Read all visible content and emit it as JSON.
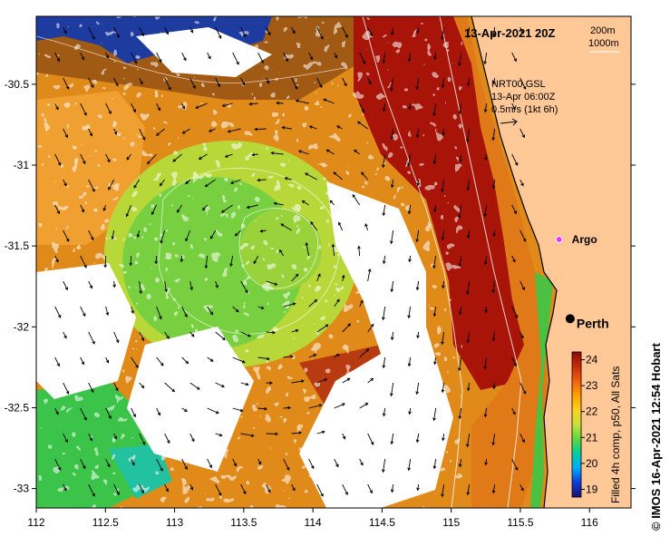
{
  "map": {
    "title": "13-Apr-2021 20Z",
    "depth_contours": [
      "200m",
      "1000m"
    ],
    "current_legend": {
      "line1": "NRT00 GSL",
      "line2": "13-Apr 06:00Z",
      "line3": "0.5m/s (1kt 6h)"
    },
    "places": [
      {
        "name": "Argo",
        "lon": 115.78,
        "lat": -31.46,
        "marker": "argo-float",
        "color": "#ff33ff"
      },
      {
        "name": "Perth",
        "lon": 115.86,
        "lat": -31.95,
        "marker": "city-dot",
        "color": "#000000"
      }
    ],
    "x_axis": {
      "ticks": [
        "112",
        "112.5",
        "113",
        "113.5",
        "114",
        "114.5",
        "115",
        "115.5",
        "116"
      ],
      "lon_min": 112,
      "lon_max": 116.3
    },
    "y_axis": {
      "ticks": [
        "-30.5",
        "-31",
        "-31.5",
        "-32",
        "-32.5",
        "-33"
      ],
      "lat_max": -30.08,
      "lat_min": -33.12
    },
    "colorbar": {
      "label": "Filled 4h comp, p50, All Sats",
      "ticks": [
        "24",
        "23",
        "22",
        "21",
        "20",
        "19"
      ],
      "min": 18.7,
      "max": 24.3,
      "colors": [
        "#1a1070",
        "#0a3cd8",
        "#00aaff",
        "#00d0a0",
        "#5cd83c",
        "#c8e03c",
        "#ffd020",
        "#ffa000",
        "#f06010",
        "#c82a0a",
        "#8c0a0a"
      ]
    },
    "credit": "© IMOS 16-Apr-2021 12:54 Hobart",
    "colors": {
      "land": "#ffc896",
      "missing": "#ffffff",
      "coast": "#000000"
    }
  }
}
